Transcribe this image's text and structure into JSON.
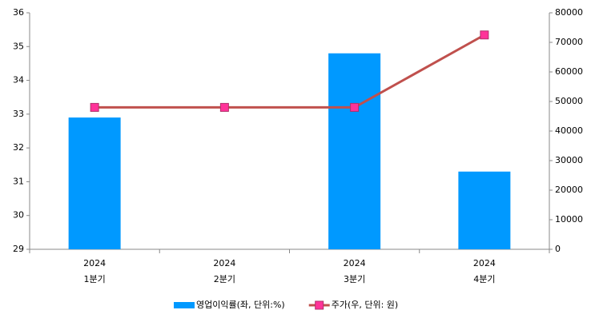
{
  "chart_data": {
    "type": "bar",
    "categories": [
      [
        "2024",
        "1분기"
      ],
      [
        "2024",
        "2분기"
      ],
      [
        "2024",
        "3분기"
      ],
      [
        "2024",
        "4분기"
      ]
    ],
    "series": [
      {
        "name": "영업이익률(좌, 단위:%)",
        "type": "bar",
        "color": "#0099ff",
        "values": [
          32.9,
          null,
          34.8,
          31.3
        ]
      },
      {
        "name": "주가(우, 단위: 원)",
        "type": "line",
        "axis": "y2",
        "color": "#c0504d",
        "marker_color": "#ff3399",
        "values": [
          48000,
          48000,
          48000,
          72500
        ]
      }
    ],
    "ylim": [
      29,
      36
    ],
    "yticks": [
      29,
      30,
      31,
      32,
      33,
      34,
      35,
      36
    ],
    "y2lim": [
      0,
      80000
    ],
    "y2ticks": [
      0,
      10000,
      20000,
      30000,
      40000,
      50000,
      60000,
      70000,
      80000
    ],
    "grid": false,
    "legend": "bottom"
  }
}
